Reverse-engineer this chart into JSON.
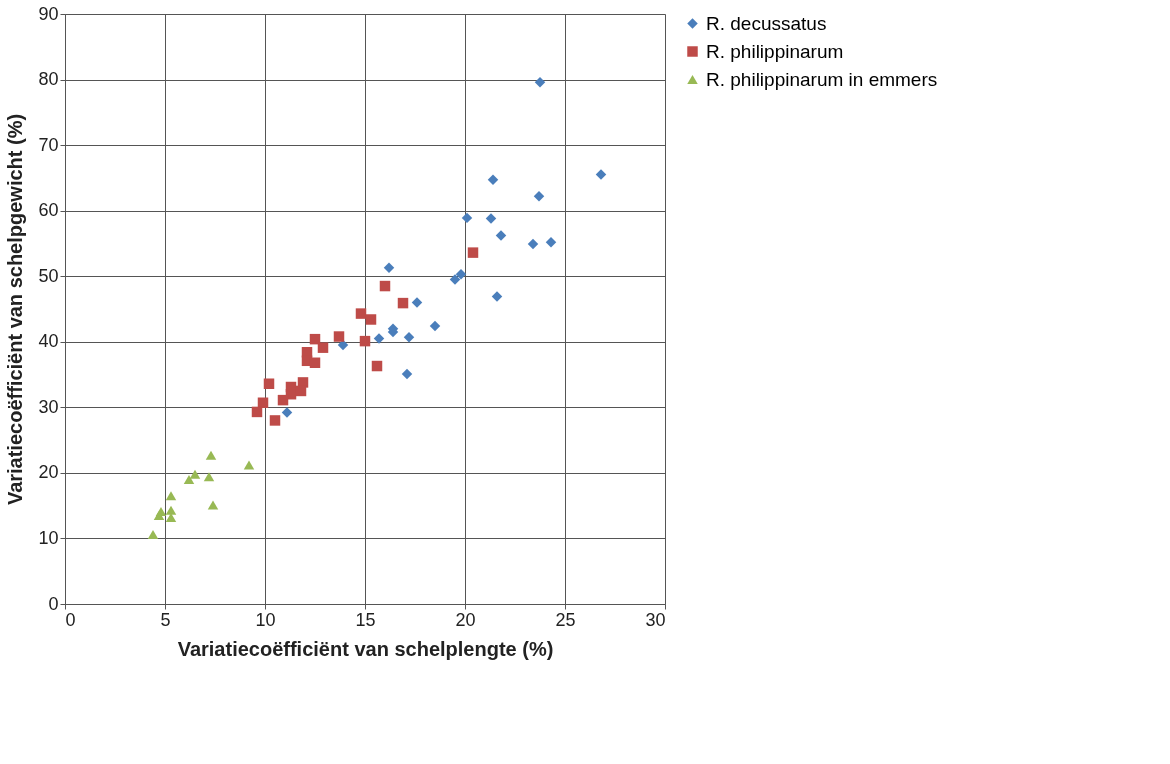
{
  "chart_data": {
    "type": "scatter",
    "xlabel": "Variatiecoëfficiënt van schelplengte (%)",
    "ylabel": "Variatiecoëfficiënt van schelpgewicht (%)",
    "xlim": [
      0,
      30
    ],
    "xticks": [
      0,
      5,
      10,
      15,
      20,
      25,
      30
    ],
    "ylim": [
      0,
      90
    ],
    "yticks": [
      0,
      10,
      20,
      30,
      40,
      50,
      60,
      70,
      80,
      90
    ],
    "grid": true,
    "legend": "right",
    "series": [
      {
        "name": "R. decussatus",
        "color": "#4a7ebb",
        "marker": "diamond",
        "x": [
          23.75,
          26.8,
          21.4,
          23.7,
          20.1,
          21.3,
          21.8,
          23.4,
          24.3,
          19.5,
          19.8,
          21.6,
          17.6,
          18.5,
          17.2,
          17.1,
          16.2,
          16.4,
          16.4,
          15.7,
          13.9,
          11.1
        ],
        "values": [
          79.6,
          65.5,
          64.7,
          62.2,
          58.9,
          58.8,
          56.2,
          54.9,
          55.2,
          49.5,
          50.3,
          46.9,
          46.0,
          42.4,
          40.7,
          35.1,
          51.3,
          42.0,
          41.5,
          40.5,
          39.5,
          29.2
        ]
      },
      {
        "name": "R. philippinarum",
        "color": "#be4b48",
        "marker": "square",
        "x": [
          20.4,
          16.0,
          16.9,
          14.8,
          15.3,
          13.7,
          15.0,
          12.5,
          12.9,
          12.1,
          12.1,
          12.5,
          15.6,
          10.2,
          11.9,
          11.3,
          11.3,
          11.8,
          10.9,
          9.9,
          9.6,
          10.5
        ],
        "values": [
          53.6,
          48.5,
          45.9,
          44.3,
          43.4,
          40.8,
          40.1,
          40.4,
          39.1,
          38.4,
          37.1,
          36.8,
          36.3,
          33.6,
          33.8,
          33.1,
          32.0,
          32.5,
          31.1,
          30.7,
          29.3,
          28.0
        ]
      },
      {
        "name": "R. philippinarum in emmers",
        "color": "#98b954",
        "marker": "triangle",
        "x": [
          7.3,
          9.2,
          6.5,
          6.2,
          7.2,
          5.3,
          7.4,
          4.8,
          5.3,
          4.7,
          5.3,
          4.4
        ],
        "values": [
          22.7,
          21.2,
          19.8,
          19.0,
          19.4,
          16.5,
          15.1,
          14.1,
          14.3,
          13.5,
          13.2,
          10.6
        ]
      }
    ]
  }
}
